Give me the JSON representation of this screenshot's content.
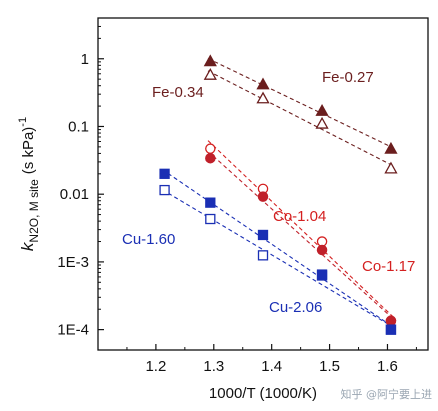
{
  "chart_data": {
    "type": "scatter",
    "title": "",
    "xlabel": "1000/T (1000/K)",
    "ylabel_main": "k",
    "ylabel_sub": "N2O, M site",
    "ylabel_units": "(s kPa)",
    "ylabel_sup": "-1",
    "xlim": [
      1.1,
      1.67
    ],
    "ylim": [
      5e-05,
      4
    ],
    "yscale": "log",
    "xticks": [
      1.2,
      1.3,
      1.4,
      1.5,
      1.6
    ],
    "xtick_labels": [
      "1.2",
      "1.3",
      "1.4",
      "1.5",
      "1.6"
    ],
    "yticks": [
      0.0001,
      0.001,
      0.01,
      0.1,
      1
    ],
    "ytick_labels": [
      "1E-4",
      "1E-3",
      "0.01",
      "0.1",
      "1"
    ],
    "grid": false,
    "legend": "none",
    "series": [
      {
        "name": "Fe-0.27",
        "marker": "triangle",
        "filled": true,
        "color": "#6b1e1e",
        "x": [
          1.294,
          1.385,
          1.487,
          1.606
        ],
        "y": [
          0.92,
          0.42,
          0.17,
          0.047
        ]
      },
      {
        "name": "Fe-0.34",
        "marker": "triangle",
        "filled": false,
        "color": "#6b1e1e",
        "x": [
          1.294,
          1.385,
          1.487,
          1.606
        ],
        "y": [
          0.58,
          0.26,
          0.11,
          0.024
        ]
      },
      {
        "name": "Co-1.04",
        "marker": "circle",
        "filled": false,
        "color": "#d42020",
        "x": [
          1.294,
          1.385,
          1.487,
          1.606
        ],
        "y": [
          0.047,
          0.012,
          0.002,
          0.000135
        ]
      },
      {
        "name": "Co-1.17",
        "marker": "circle",
        "filled": true,
        "color": "#c0202a",
        "x": [
          1.294,
          1.385,
          1.487,
          1.606
        ],
        "y": [
          0.034,
          0.0092,
          0.0015,
          0.000135
        ]
      },
      {
        "name": "Cu-1.60",
        "marker": "square",
        "filled": false,
        "color": "#1a2fb4",
        "x": [
          1.215,
          1.294,
          1.385,
          1.487,
          1.606
        ],
        "y": [
          0.0115,
          0.0043,
          0.00125,
          0.00063,
          0.0001
        ]
      },
      {
        "name": "Cu-2.06",
        "marker": "square",
        "filled": true,
        "color": "#1a2fb4",
        "x": [
          1.215,
          1.294,
          1.385,
          1.487,
          1.606
        ],
        "y": [
          0.02,
          0.0075,
          0.0025,
          0.00065,
          0.0001
        ]
      }
    ]
  },
  "watermark": "知乎 @阿宁要上进"
}
